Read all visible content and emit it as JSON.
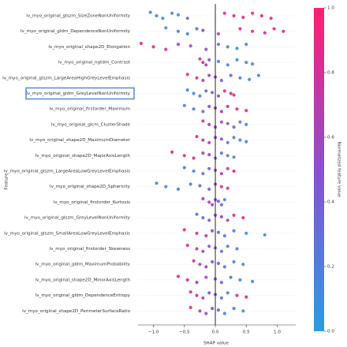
{
  "chart_data": {
    "type": "beeswarm",
    "x_label": "SHAP value",
    "y_label": "Feature",
    "xlim": [
      -1.25,
      1.3
    ],
    "xticks": [
      {
        "value": -1,
        "label": "−1.0"
      },
      {
        "value": -0.5,
        "label": "−0.5"
      },
      {
        "value": 0,
        "label": "0.0"
      },
      {
        "value": 0.5,
        "label": "0.5"
      },
      {
        "value": 1,
        "label": "1.0"
      }
    ],
    "highlight": 5,
    "colorbar": {
      "label": "Normalized feature value",
      "lim": [
        0,
        1
      ],
      "ticks": [
        {
          "value": 0,
          "label": "0.0"
        },
        {
          "value": 0.2,
          "label": "0.2"
        },
        {
          "value": 0.4,
          "label": "0.4"
        },
        {
          "value": 0.6,
          "label": "0.6"
        },
        {
          "value": 0.8,
          "label": "0.8"
        },
        {
          "value": 1,
          "label": "1.0"
        }
      ],
      "colors": [
        "#2a9de0",
        "#8a4fd0",
        "#ff1f70"
      ]
    },
    "series": [
      {
        "name": "lv_myo_original_glszm_SizeZoneNonUniformity",
        "values": [
          -1.05,
          -0.95,
          -0.85,
          -0.7,
          -0.6,
          -0.45,
          0.15,
          0.3,
          0.45,
          0.6,
          0.75,
          0.9
        ],
        "feature_values": [
          0.1,
          0.15,
          0.1,
          0.2,
          0.1,
          0.3,
          0.8,
          0.9,
          0.85,
          0.9,
          0.95,
          0.85
        ]
      },
      {
        "name": "lv_myo_original_gldm_DependenceNonUniformity",
        "values": [
          -0.8,
          -0.6,
          -0.45,
          -0.3,
          -0.2,
          0.05,
          0.4,
          0.6,
          0.8,
          0.95,
          1.1
        ],
        "feature_values": [
          0.1,
          0.2,
          0.15,
          0.3,
          0.5,
          0.6,
          0.85,
          0.9,
          0.8,
          0.95,
          0.9
        ]
      },
      {
        "name": "lv_myo_original_shape2D_Elongation",
        "values": [
          -1.2,
          -1.0,
          -0.8,
          -0.6,
          -0.4,
          -0.15,
          0.05,
          0.2,
          0.35,
          0.5
        ],
        "feature_values": [
          0.9,
          0.85,
          0.8,
          0.7,
          0.6,
          0.5,
          0.3,
          0.2,
          0.15,
          0.1
        ]
      },
      {
        "name": "lv_myo_original_ngtdm_Contrast",
        "values": [
          -0.25,
          -0.2,
          -0.15,
          -0.1,
          0.05,
          0.2,
          0.35,
          0.5,
          0.6
        ],
        "feature_values": [
          0.8,
          0.7,
          0.6,
          0.5,
          0.2,
          0.15,
          0.1,
          0.2,
          0.1
        ]
      },
      {
        "name": "lv_myo_original_glszm_LargeAreaHighGreyLevelEmphasis",
        "values": [
          -0.45,
          -0.3,
          -0.2,
          -0.1,
          0.0,
          0.1,
          0.25,
          0.4,
          0.55,
          0.7
        ],
        "feature_values": [
          0.9,
          0.8,
          0.7,
          0.6,
          0.5,
          0.4,
          0.3,
          0.2,
          0.15,
          0.1
        ]
      },
      {
        "name": "lv_myo_original_gldm_GreyLevelNonUniformity",
        "values": [
          -0.45,
          -0.35,
          -0.25,
          -0.15,
          -0.05,
          0.05,
          0.15,
          0.25,
          0.3
        ],
        "feature_values": [
          0.1,
          0.15,
          0.2,
          0.3,
          0.4,
          0.6,
          0.8,
          0.9,
          0.85
        ]
      },
      {
        "name": "lv_myo_original_firstorder_Maximum",
        "values": [
          -0.5,
          -0.35,
          -0.2,
          -0.1,
          0.0,
          0.1,
          0.2,
          0.35,
          0.5
        ],
        "feature_values": [
          0.2,
          0.15,
          0.3,
          0.5,
          0.6,
          0.7,
          0.8,
          0.9,
          0.85
        ]
      },
      {
        "name": "lv_myo_original_glcm_ClusterShade",
        "values": [
          -0.2,
          -0.1,
          0.0,
          0.1,
          0.2,
          0.3,
          0.4,
          0.5
        ],
        "feature_values": [
          0.8,
          0.7,
          0.6,
          0.5,
          0.4,
          0.3,
          0.2,
          0.15
        ]
      },
      {
        "name": "lv_myo_original_shape2D_MaximumDiameter",
        "values": [
          -0.3,
          -0.2,
          -0.1,
          0.0,
          0.1,
          0.2,
          0.3,
          0.4,
          0.5
        ],
        "feature_values": [
          0.8,
          0.75,
          0.7,
          0.5,
          0.4,
          0.3,
          0.2,
          0.15,
          0.1
        ]
      },
      {
        "name": "lv_myo_original_shape2D_MajorAxisLength",
        "values": [
          -0.7,
          -0.5,
          -0.35,
          -0.2,
          -0.1,
          0.0,
          0.1,
          0.2,
          0.3
        ],
        "feature_values": [
          0.9,
          0.85,
          0.8,
          0.7,
          0.6,
          0.4,
          0.3,
          0.2,
          0.15
        ]
      },
      {
        "name": "lv_myo_original_glszm_LargeAreaLowGreyLevelEmphasis",
        "values": [
          -0.5,
          -0.35,
          -0.2,
          -0.1,
          0.0,
          0.1,
          0.2,
          0.3
        ],
        "feature_values": [
          0.2,
          0.15,
          0.3,
          0.4,
          0.6,
          0.7,
          0.8,
          0.85
        ]
      },
      {
        "name": "lv_myo_original_shape2D_Sphericity",
        "values": [
          -0.95,
          -0.8,
          -0.6,
          -0.4,
          -0.25,
          -0.1,
          0.0,
          0.1,
          0.2
        ],
        "feature_values": [
          0.1,
          0.15,
          0.2,
          0.15,
          0.3,
          0.4,
          0.6,
          0.8,
          0.9
        ]
      },
      {
        "name": "lv_myo_original_firstorder_Kurtosis",
        "values": [
          -0.2,
          -0.1,
          -0.05,
          0.0,
          0.05,
          0.1,
          0.15
        ],
        "feature_values": [
          0.8,
          0.7,
          0.6,
          0.5,
          0.4,
          0.3,
          0.2
        ]
      },
      {
        "name": "lv_myo_original_glszm_GreyLevelNonUniformity",
        "values": [
          -0.3,
          -0.2,
          -0.1,
          0.0,
          0.1,
          0.2,
          0.3,
          0.45
        ],
        "feature_values": [
          0.2,
          0.3,
          0.4,
          0.5,
          0.6,
          0.7,
          0.8,
          0.9
        ]
      },
      {
        "name": "lv_myo_original_glszm_SmallAreaLowGreyLevelEmphasis",
        "values": [
          -0.5,
          -0.3,
          -0.15,
          -0.05,
          0.05,
          0.15,
          0.3,
          0.5,
          0.8
        ],
        "feature_values": [
          0.9,
          0.85,
          0.7,
          0.5,
          0.3,
          0.2,
          0.15,
          0.1,
          0.1
        ]
      },
      {
        "name": "lv_myo_original_firstorder_Skewness",
        "values": [
          -0.45,
          -0.3,
          -0.2,
          -0.1,
          0.0,
          0.1,
          0.2,
          0.35
        ],
        "feature_values": [
          0.8,
          0.7,
          0.6,
          0.5,
          0.4,
          0.3,
          0.2,
          0.15
        ]
      },
      {
        "name": "lv_myo_original_gldm_MaximumProbability",
        "values": [
          -0.35,
          -0.25,
          -0.15,
          -0.05,
          0.05,
          0.15,
          0.3,
          0.45
        ],
        "feature_values": [
          0.8,
          0.7,
          0.6,
          0.5,
          0.4,
          0.3,
          0.2,
          0.15
        ]
      },
      {
        "name": "lv_myo_original_shape2D_MinorAxisLength",
        "values": [
          -0.6,
          -0.45,
          -0.3,
          -0.15,
          0.0,
          0.1,
          0.25,
          0.4,
          0.6
        ],
        "feature_values": [
          0.9,
          0.85,
          0.7,
          0.6,
          0.4,
          0.3,
          0.2,
          0.15,
          0.1
        ]
      },
      {
        "name": "lv_myo_original_gldm_DependenceEntropy",
        "values": [
          -0.4,
          -0.3,
          -0.2,
          -0.1,
          0.0,
          0.1,
          0.2,
          0.35,
          0.5
        ],
        "feature_values": [
          0.8,
          0.75,
          0.7,
          0.5,
          0.4,
          0.3,
          0.2,
          0.8,
          0.9
        ]
      },
      {
        "name": "lv_myo_original_shape2D_PerimeterSurfaceRatio",
        "values": [
          -0.4,
          -0.25,
          -0.15,
          -0.05,
          0.05,
          0.15,
          0.3,
          0.45
        ],
        "feature_values": [
          0.8,
          0.7,
          0.6,
          0.5,
          0.3,
          0.2,
          0.15,
          0.1
        ]
      }
    ]
  }
}
